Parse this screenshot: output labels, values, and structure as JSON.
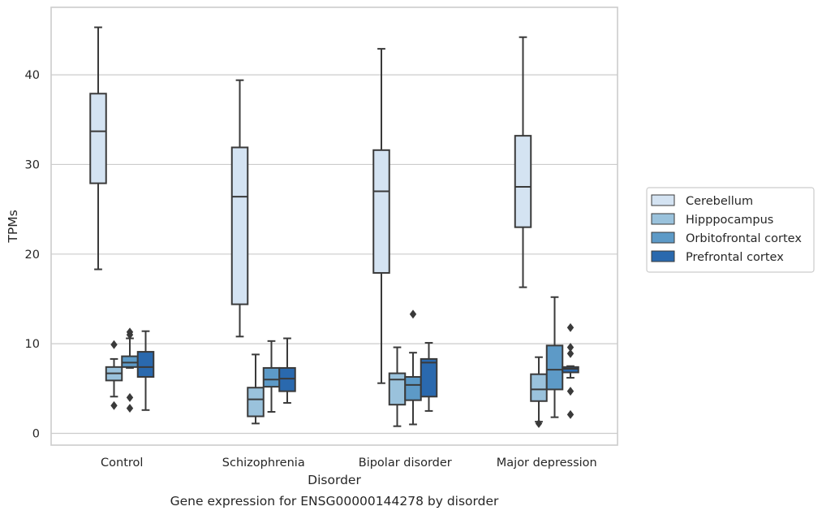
{
  "chart_data": {
    "type": "boxplot",
    "title": "",
    "caption": "Gene expression for ENSG00000144278 by disorder",
    "xlabel": "Disorder",
    "ylabel": "TPMs",
    "ylim": [
      -1.2,
      47.7
    ],
    "yticks": [
      0,
      10,
      20,
      30,
      40
    ],
    "grid": "horizontal",
    "legend_position": "right",
    "categories": [
      "Control",
      "Schizophrenia",
      "Bipolar disorder",
      "Major depression"
    ],
    "series": [
      {
        "name": "Cerebellum",
        "color": "#d4e3f2",
        "boxes": [
          {
            "whislo": 18.3,
            "q1": 27.9,
            "med": 33.7,
            "q3": 37.9,
            "whishi": 45.3,
            "fliers": []
          },
          {
            "whislo": 10.8,
            "q1": 14.4,
            "med": 26.4,
            "q3": 31.9,
            "whishi": 39.4,
            "fliers": []
          },
          {
            "whislo": 5.6,
            "q1": 17.9,
            "med": 27.0,
            "q3": 31.6,
            "whishi": 42.9,
            "fliers": []
          },
          {
            "whislo": 16.3,
            "q1": 23.0,
            "med": 27.5,
            "q3": 33.2,
            "whishi": 44.2,
            "fliers": []
          }
        ]
      },
      {
        "name": "Hipppocampus",
        "color": "#9ac2dc",
        "boxes": [
          {
            "whislo": 4.1,
            "q1": 5.9,
            "med": 6.7,
            "q3": 7.4,
            "whishi": 8.3,
            "fliers": [
              9.9,
              3.1
            ]
          },
          {
            "whislo": 1.1,
            "q1": 1.9,
            "med": 3.8,
            "q3": 5.1,
            "whishi": 8.8,
            "fliers": []
          },
          {
            "whislo": 0.8,
            "q1": 3.2,
            "med": 6.0,
            "q3": 6.7,
            "whishi": 9.6,
            "fliers": []
          },
          {
            "whislo": 1.3,
            "q1": 3.6,
            "med": 4.9,
            "q3": 6.6,
            "whishi": 8.5,
            "fliers": [
              1.1
            ]
          }
        ]
      },
      {
        "name": "Orbitofrontal cortex",
        "color": "#5d9ac7",
        "boxes": [
          {
            "whislo": 7.3,
            "q1": 7.4,
            "med": 7.9,
            "q3": 8.6,
            "whishi": 10.6,
            "fliers": [
              11.3,
              11.0,
              4.0,
              2.8
            ]
          },
          {
            "whislo": 2.4,
            "q1": 5.2,
            "med": 6.0,
            "q3": 7.3,
            "whishi": 10.3,
            "fliers": []
          },
          {
            "whislo": 1.0,
            "q1": 3.7,
            "med": 5.4,
            "q3": 6.3,
            "whishi": 9.0,
            "fliers": [
              13.3
            ]
          },
          {
            "whislo": 1.8,
            "q1": 4.9,
            "med": 7.1,
            "q3": 9.8,
            "whishi": 15.2,
            "fliers": []
          }
        ]
      },
      {
        "name": "Prefrontal cortex",
        "color": "#2a69ae",
        "boxes": [
          {
            "whislo": 2.6,
            "q1": 6.3,
            "med": 7.4,
            "q3": 9.1,
            "whishi": 11.4,
            "fliers": []
          },
          {
            "whislo": 3.4,
            "q1": 4.7,
            "med": 6.1,
            "q3": 7.3,
            "whishi": 10.6,
            "fliers": []
          },
          {
            "whislo": 2.5,
            "q1": 4.1,
            "med": 7.9,
            "q3": 8.3,
            "whishi": 10.1,
            "fliers": []
          },
          {
            "whislo": 6.2,
            "q1": 6.8,
            "med": 7.2,
            "q3": 7.4,
            "whishi": 7.5,
            "fliers": [
              11.8,
              9.6,
              8.9,
              4.7,
              2.1
            ]
          }
        ]
      }
    ]
  }
}
